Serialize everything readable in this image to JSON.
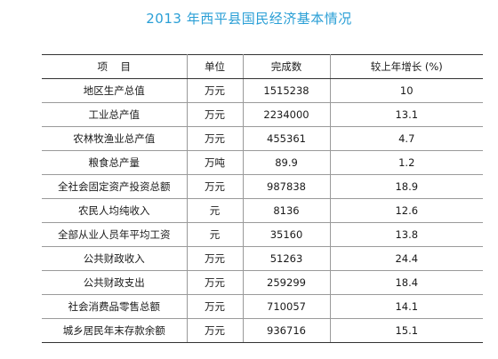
{
  "title": "2013 年西平县国民经济基本情况",
  "table": {
    "headers": [
      "项    目",
      "单位",
      "完成数",
      "较上年增长 (%)"
    ],
    "rows": [
      {
        "item": "地区生产总值",
        "unit": "万元",
        "value": "1515238",
        "growth": "10"
      },
      {
        "item": "工业总产值",
        "unit": "万元",
        "value": "2234000",
        "growth": "13.1"
      },
      {
        "item": "农林牧渔业总产值",
        "unit": "万元",
        "value": "455361",
        "growth": "4.7"
      },
      {
        "item": "粮食总产量",
        "unit": "万吨",
        "value": "89.9",
        "growth": "1.2"
      },
      {
        "item": "全社会固定资产投资总额",
        "unit": "万元",
        "value": "987838",
        "growth": "18.9"
      },
      {
        "item": "农民人均纯收入",
        "unit": "元",
        "value": "8136",
        "growth": "12.6"
      },
      {
        "item": "全部从业人员年平均工资",
        "unit": "元",
        "value": "35160",
        "growth": "13.8"
      },
      {
        "item": "公共财政收入",
        "unit": "万元",
        "value": "51263",
        "growth": "24.4"
      },
      {
        "item": "公共财政支出",
        "unit": "万元",
        "value": "259299",
        "growth": "18.4"
      },
      {
        "item": "社会消费品零售总额",
        "unit": "万元",
        "value": "710057",
        "growth": "14.1"
      },
      {
        "item": "城乡居民年末存款余额",
        "unit": "万元",
        "value": "936716",
        "growth": "15.1"
      }
    ]
  }
}
